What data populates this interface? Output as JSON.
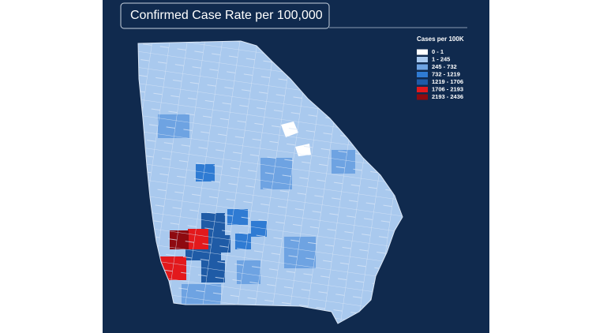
{
  "title": "Confirmed Case Rate per 100,000",
  "legend": {
    "title": "Cases per 100K",
    "items": [
      {
        "label": "0 - 1",
        "color": "#ffffff"
      },
      {
        "label": "1 - 245",
        "color": "#a9c9ee"
      },
      {
        "label": "245 - 732",
        "color": "#6ea3e2"
      },
      {
        "label": "732 - 1219",
        "color": "#2f7bd3"
      },
      {
        "label": "1219 - 1706",
        "color": "#1f5ba6"
      },
      {
        "label": "1706 - 2193",
        "color": "#e3191c"
      },
      {
        "label": "2193 - 2436",
        "color": "#8e0a10"
      }
    ]
  }
}
